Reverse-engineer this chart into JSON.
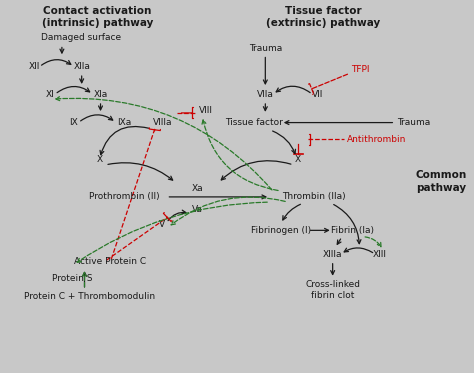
{
  "fig_width": 4.74,
  "fig_height": 3.73,
  "dpi": 100,
  "labels": {
    "contact_title_line1": "Contact activation",
    "contact_title_line2": "(intrinsic) pathway",
    "tissue_title_line1": "Tissue factor",
    "tissue_title_line2": "(extrinsic) pathway",
    "common_pathway_line1": "Common",
    "common_pathway_line2": "pathway",
    "damaged_surface": "Damaged surface",
    "trauma1": "Trauma",
    "trauma2": "Trauma",
    "XII": "XII",
    "XIIa": "XIIa",
    "XI": "XI",
    "XIa": "XIa",
    "IX": "IX",
    "IXa": "IXa",
    "VIIIa": "VIIIa",
    "VIII": "VIII",
    "VIIa": "VIIa",
    "VII": "VII",
    "tissue_factor": "Tissue factor",
    "X_left": "X",
    "X_right": "X",
    "Xa": "Xa",
    "prothrombin": "Prothrombin (II)",
    "thrombin": "Thrombin (IIa)",
    "Va": "Va",
    "V": "V",
    "fibrinogen": "Fibrinogen (I)",
    "fibrin": "Fibrin (Ia)",
    "XIIIa": "XIIIa",
    "XIII": "XIII",
    "cross_linked": "Cross-linked\nfibrin clot",
    "active_protein_c": "Active Protein C",
    "protein_s": "Protein S",
    "protein_c_thrombomodulin": "Protein C + Thrombomodulin",
    "TFPI": "TFPI",
    "antithrombin": "Antithrombin"
  },
  "colors": {
    "black": "#1a1a1a",
    "red": "#cc0000",
    "green": "#2a7a2a",
    "background": "#c8c8c8"
  }
}
